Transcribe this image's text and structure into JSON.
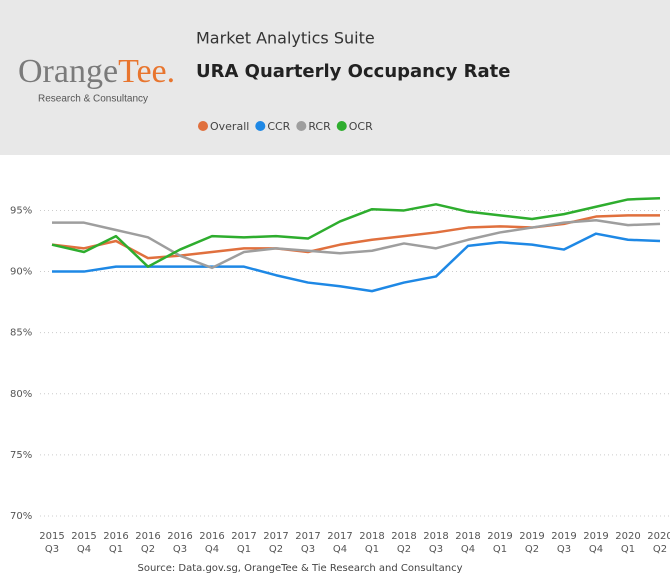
{
  "header": {
    "logo": {
      "part1": "Orange",
      "part2": "Tee.",
      "tagline": "Research & Consultancy"
    },
    "suite": "Market Analytics Suite"
  },
  "chart_data": {
    "type": "line",
    "title": "URA Quarterly Occupancy Rate",
    "categories": [
      [
        "2015",
        "Q3"
      ],
      [
        "2015",
        "Q4"
      ],
      [
        "2016",
        "Q1"
      ],
      [
        "2016",
        "Q2"
      ],
      [
        "2016",
        "Q3"
      ],
      [
        "2016",
        "Q4"
      ],
      [
        "2017",
        "Q1"
      ],
      [
        "2017",
        "Q2"
      ],
      [
        "2017",
        "Q3"
      ],
      [
        "2017",
        "Q4"
      ],
      [
        "2018",
        "Q1"
      ],
      [
        "2018",
        "Q2"
      ],
      [
        "2018",
        "Q3"
      ],
      [
        "2018",
        "Q4"
      ],
      [
        "2019",
        "Q1"
      ],
      [
        "2019",
        "Q2"
      ],
      [
        "2019",
        "Q3"
      ],
      [
        "2019",
        "Q4"
      ],
      [
        "2020",
        "Q1"
      ],
      [
        "2020",
        "Q2"
      ]
    ],
    "series": [
      {
        "name": "Overall",
        "color": "#e0703e",
        "values": [
          92.2,
          91.9,
          92.5,
          91.1,
          91.3,
          91.6,
          91.9,
          91.9,
          91.6,
          92.2,
          92.6,
          92.9,
          93.2,
          93.6,
          93.7,
          93.6,
          93.9,
          94.5,
          94.6,
          94.6
        ]
      },
      {
        "name": "CCR",
        "color": "#1e88e5",
        "values": [
          90.0,
          90.0,
          90.4,
          90.4,
          90.4,
          90.4,
          90.4,
          89.7,
          89.1,
          88.8,
          88.4,
          89.1,
          89.6,
          92.1,
          92.4,
          92.2,
          91.8,
          93.1,
          92.6,
          92.5
        ]
      },
      {
        "name": "RCR",
        "color": "#9e9e9e",
        "values": [
          94.0,
          94.0,
          93.4,
          92.8,
          91.3,
          90.3,
          91.6,
          91.9,
          91.7,
          91.5,
          91.7,
          92.3,
          91.9,
          92.6,
          93.2,
          93.6,
          94.0,
          94.2,
          93.8,
          93.9
        ]
      },
      {
        "name": "OCR",
        "color": "#2ead2e",
        "values": [
          92.2,
          91.6,
          92.9,
          90.4,
          91.8,
          92.9,
          92.8,
          92.9,
          92.7,
          94.1,
          95.1,
          95.0,
          95.5,
          94.9,
          94.6,
          94.3,
          94.7,
          95.3,
          95.9,
          96.0
        ]
      }
    ],
    "ylim": [
      70,
      97
    ],
    "yticks": [
      {
        "value": 70,
        "label": "70%"
      },
      {
        "value": 75,
        "label": "75%"
      },
      {
        "value": 80,
        "label": "80%"
      },
      {
        "value": 85,
        "label": "85%"
      },
      {
        "value": 90,
        "label": "90%"
      },
      {
        "value": 95,
        "label": "95%"
      }
    ],
    "grid": true,
    "source": "Source: Data.gov.sg, OrangeTee & Tie Research and Consultancy"
  }
}
